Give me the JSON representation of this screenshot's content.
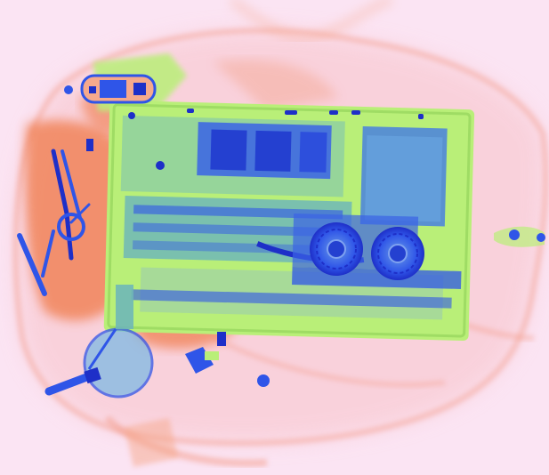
{
  "image": {
    "kind": "x-ray baggage scan",
    "colors": {
      "background": "#fbe4f3",
      "organic_orange": "#f07a4a",
      "organic_light": "#f6a98c",
      "inorganic_green": "#b9ef78",
      "metal_blue": "#2f55e8",
      "metal_dark": "#1e2fc8",
      "board_teal": "#6fb7b7"
    },
    "objects": [
      {
        "id": "bag",
        "icon": "bag-outline-icon"
      },
      {
        "id": "laptop",
        "icon": "laptop-icon"
      },
      {
        "id": "cooling-fan-left",
        "icon": "fan-icon"
      },
      {
        "id": "cooling-fan-right",
        "icon": "fan-icon"
      },
      {
        "id": "charger-brick",
        "icon": "charger-icon"
      },
      {
        "id": "key-ring",
        "icon": "key-icon"
      },
      {
        "id": "pen",
        "icon": "pen-icon"
      },
      {
        "id": "round-container",
        "icon": "disc-icon"
      },
      {
        "id": "usb-plug",
        "icon": "plug-icon"
      },
      {
        "id": "bag-zipper-pulls",
        "icon": "zipper-icon"
      }
    ]
  }
}
